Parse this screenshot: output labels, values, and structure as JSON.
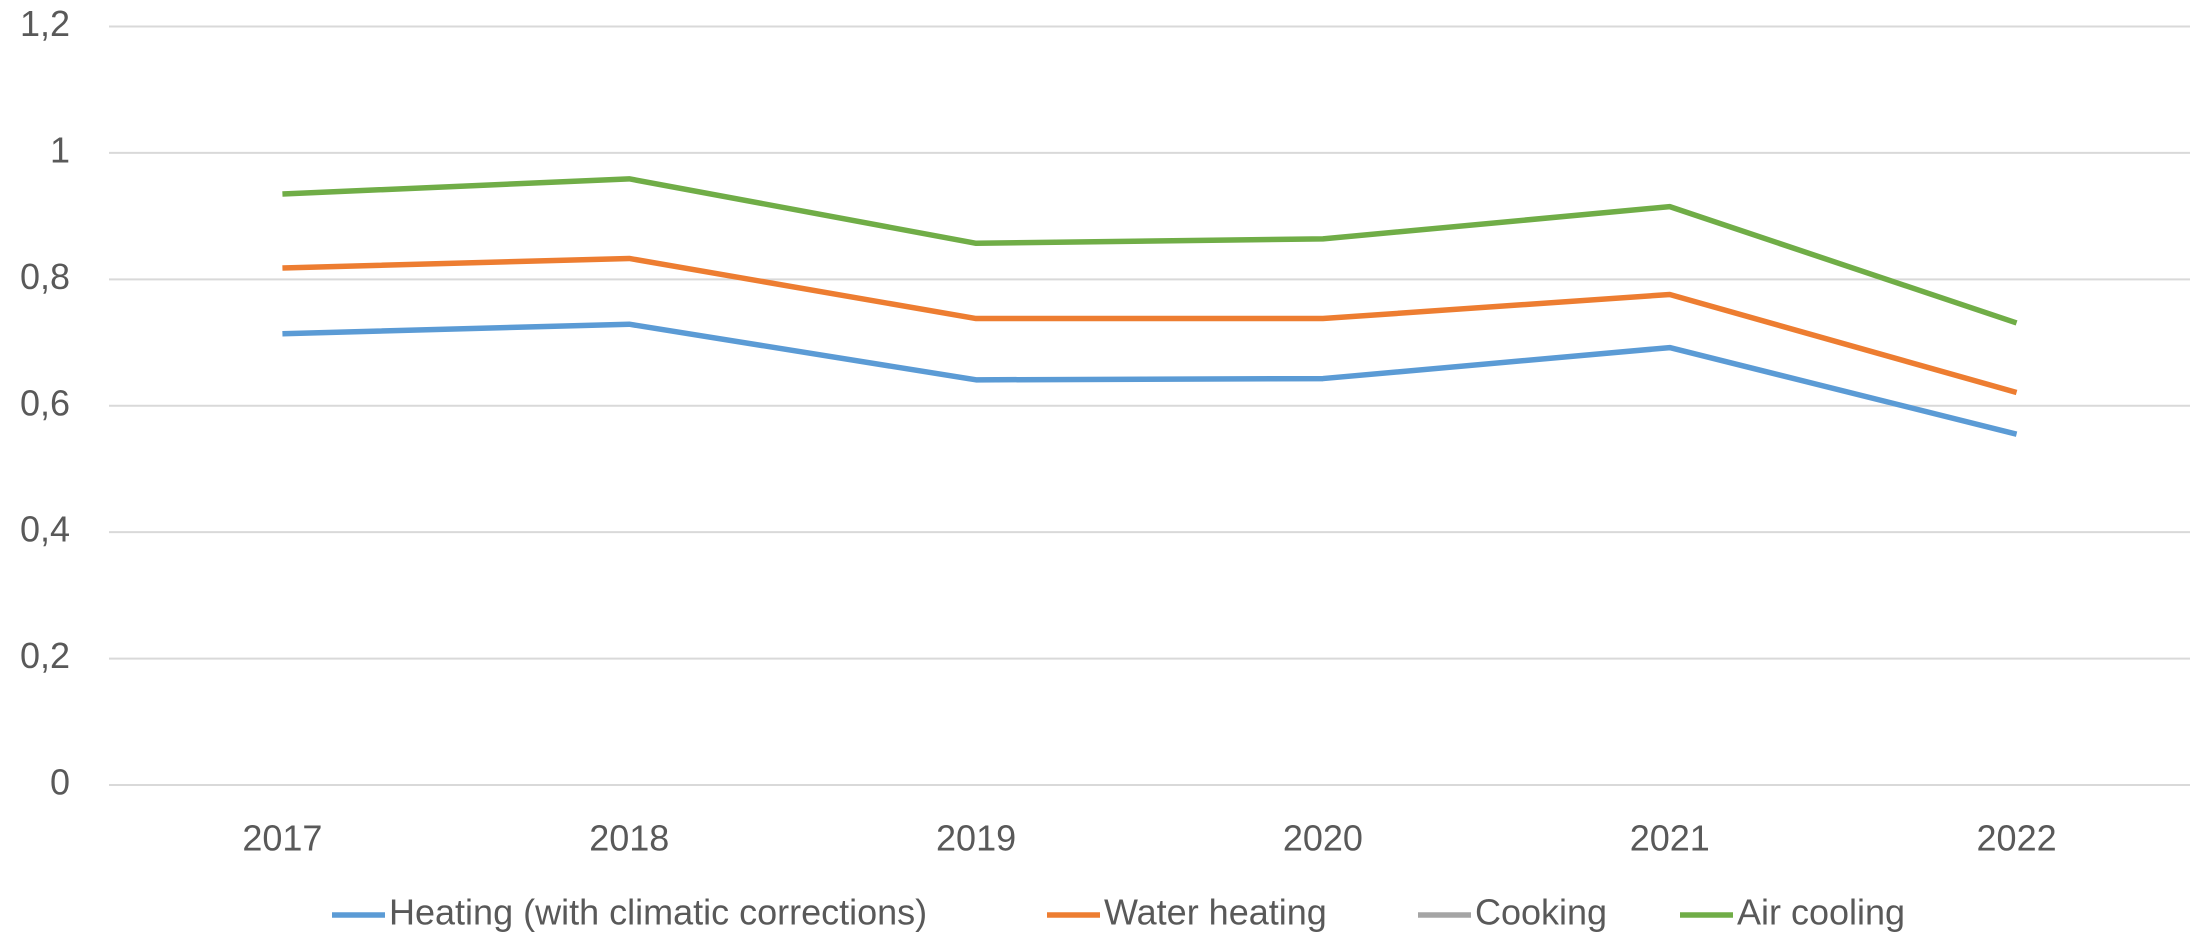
{
  "chart_data": {
    "type": "line",
    "categories": [
      "2017",
      "2018",
      "2019",
      "2020",
      "2021",
      "2022"
    ],
    "series": [
      {
        "name": "Heating (with climatic corrections)",
        "color": "#5b9bd5",
        "values": [
          0.714,
          0.729,
          0.641,
          0.643,
          0.692,
          0.555
        ]
      },
      {
        "name": "Water heating",
        "color": "#ed7d31",
        "values": [
          0.818,
          0.833,
          0.738,
          0.738,
          0.776,
          0.621
        ]
      },
      {
        "name": "Cooking",
        "color": "#a5a5a5",
        "values": [
          null,
          null,
          null,
          null,
          null,
          null
        ]
      },
      {
        "name": "Air cooling",
        "color": "#70ad47",
        "values": [
          0.935,
          0.959,
          0.857,
          0.864,
          0.915,
          0.731
        ]
      }
    ],
    "ylim": [
      0,
      1.2
    ],
    "yticks": [
      0,
      {
        "value": 0.2,
        "label": "0,2"
      },
      {
        "value": 0.4,
        "label": "0,4"
      },
      {
        "value": 0.6,
        "label": "0,6"
      },
      {
        "value": 0.8,
        "label": "0,8"
      },
      1,
      {
        "value": 1.2,
        "label": "1,2"
      }
    ],
    "grid": true,
    "legend": "bottom"
  }
}
